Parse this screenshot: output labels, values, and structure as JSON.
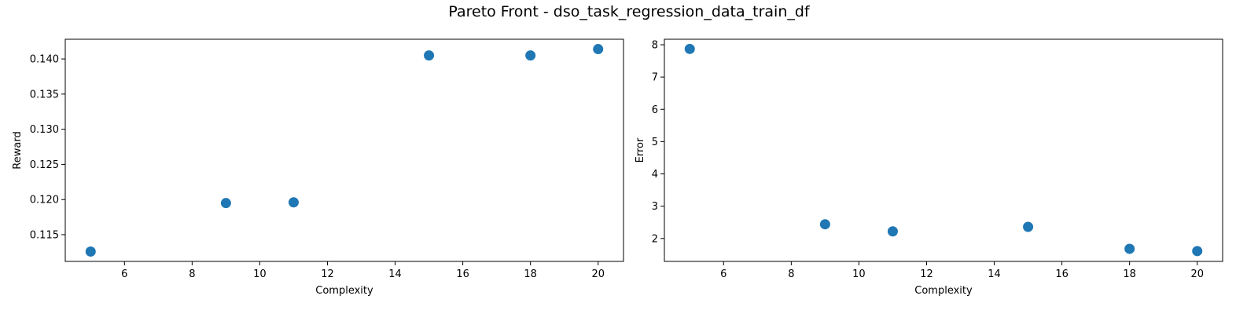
{
  "title": "Pareto Front - dso_task_regression_data_train_df",
  "series_color": "#1f77b4",
  "chart_data": [
    {
      "type": "scatter",
      "title": "",
      "xlabel": "Complexity",
      "ylabel": "Reward",
      "xlim": [
        4.25,
        20.75
      ],
      "ylim": [
        0.1112,
        0.1428
      ],
      "xticks": [
        6,
        8,
        10,
        12,
        14,
        16,
        18,
        20
      ],
      "xtick_labels": [
        "6",
        "8",
        "10",
        "12",
        "14",
        "16",
        "18",
        "20"
      ],
      "yticks": [
        0.115,
        0.12,
        0.125,
        0.13,
        0.135,
        0.14
      ],
      "ytick_labels": [
        "0.115",
        "0.120",
        "0.125",
        "0.130",
        "0.135",
        "0.140"
      ],
      "grid": false,
      "x": [
        5,
        9,
        11,
        15,
        18,
        20
      ],
      "y": [
        0.1126,
        0.1195,
        0.1196,
        0.1405,
        0.1405,
        0.1414
      ]
    },
    {
      "type": "scatter",
      "title": "",
      "xlabel": "Complexity",
      "ylabel": "Error",
      "xlim": [
        4.25,
        20.75
      ],
      "ylim": [
        1.29,
        8.17
      ],
      "xticks": [
        6,
        8,
        10,
        12,
        14,
        16,
        18,
        20
      ],
      "xtick_labels": [
        "6",
        "8",
        "10",
        "12",
        "14",
        "16",
        "18",
        "20"
      ],
      "yticks": [
        2,
        3,
        4,
        5,
        6,
        7,
        8
      ],
      "ytick_labels": [
        "2",
        "3",
        "4",
        "5",
        "6",
        "7",
        "8"
      ],
      "grid": false,
      "x": [
        5,
        9,
        11,
        15,
        18,
        20
      ],
      "y": [
        7.87,
        2.44,
        2.22,
        2.36,
        1.68,
        1.61
      ]
    }
  ]
}
